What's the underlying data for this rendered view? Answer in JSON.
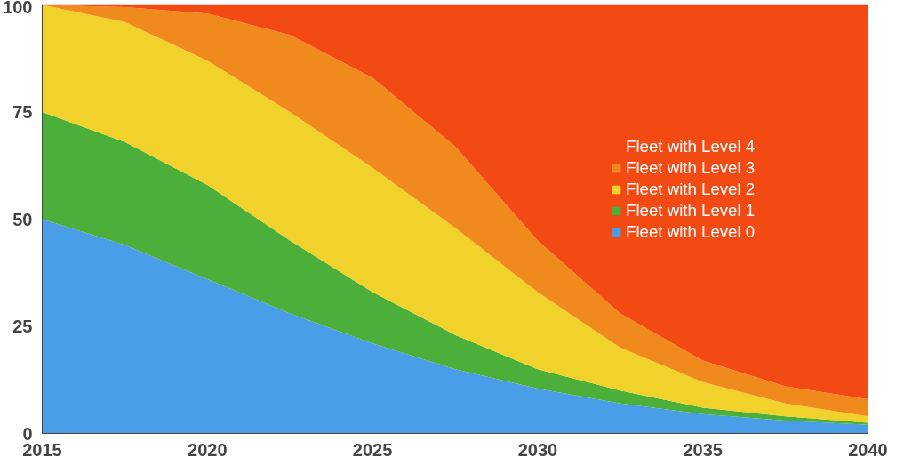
{
  "chart_data": {
    "type": "area",
    "stacked": true,
    "x": [
      2015,
      2017.5,
      2020,
      2022.5,
      2025,
      2027.5,
      2030,
      2032.5,
      2035,
      2037.5,
      2040
    ],
    "series": [
      {
        "name": "Fleet with Level 0",
        "color": "#4a9ee8",
        "values": [
          50,
          44,
          36,
          28,
          21,
          15,
          10.5,
          7,
          4.5,
          3,
          2
        ]
      },
      {
        "name": "Fleet with Level 1",
        "color": "#4caf3a",
        "values": [
          25,
          24,
          22,
          17,
          12,
          8,
          4.5,
          3,
          1.5,
          1,
          0.5
        ]
      },
      {
        "name": "Fleet with Level 2",
        "color": "#f0d22a",
        "values": [
          25,
          28,
          29,
          30,
          29,
          25,
          18,
          10,
          6,
          3,
          1.5
        ]
      },
      {
        "name": "Fleet with Level 3",
        "color": "#f08a1c",
        "values": [
          0,
          3.5,
          11,
          18,
          21,
          19,
          12,
          8,
          5,
          4,
          4
        ]
      },
      {
        "name": "Fleet with Level 4",
        "color": "#f24a12",
        "values": [
          0,
          0.5,
          2,
          7,
          17,
          33,
          55,
          72,
          83,
          89,
          92
        ]
      }
    ],
    "xlim": [
      2015,
      2040
    ],
    "xticks": [
      2015,
      2020,
      2025,
      2030,
      2035,
      2040
    ],
    "ylim": [
      0,
      100
    ],
    "yticks": [
      0,
      25,
      50,
      75,
      100
    ],
    "grid": false,
    "legend": "right"
  }
}
